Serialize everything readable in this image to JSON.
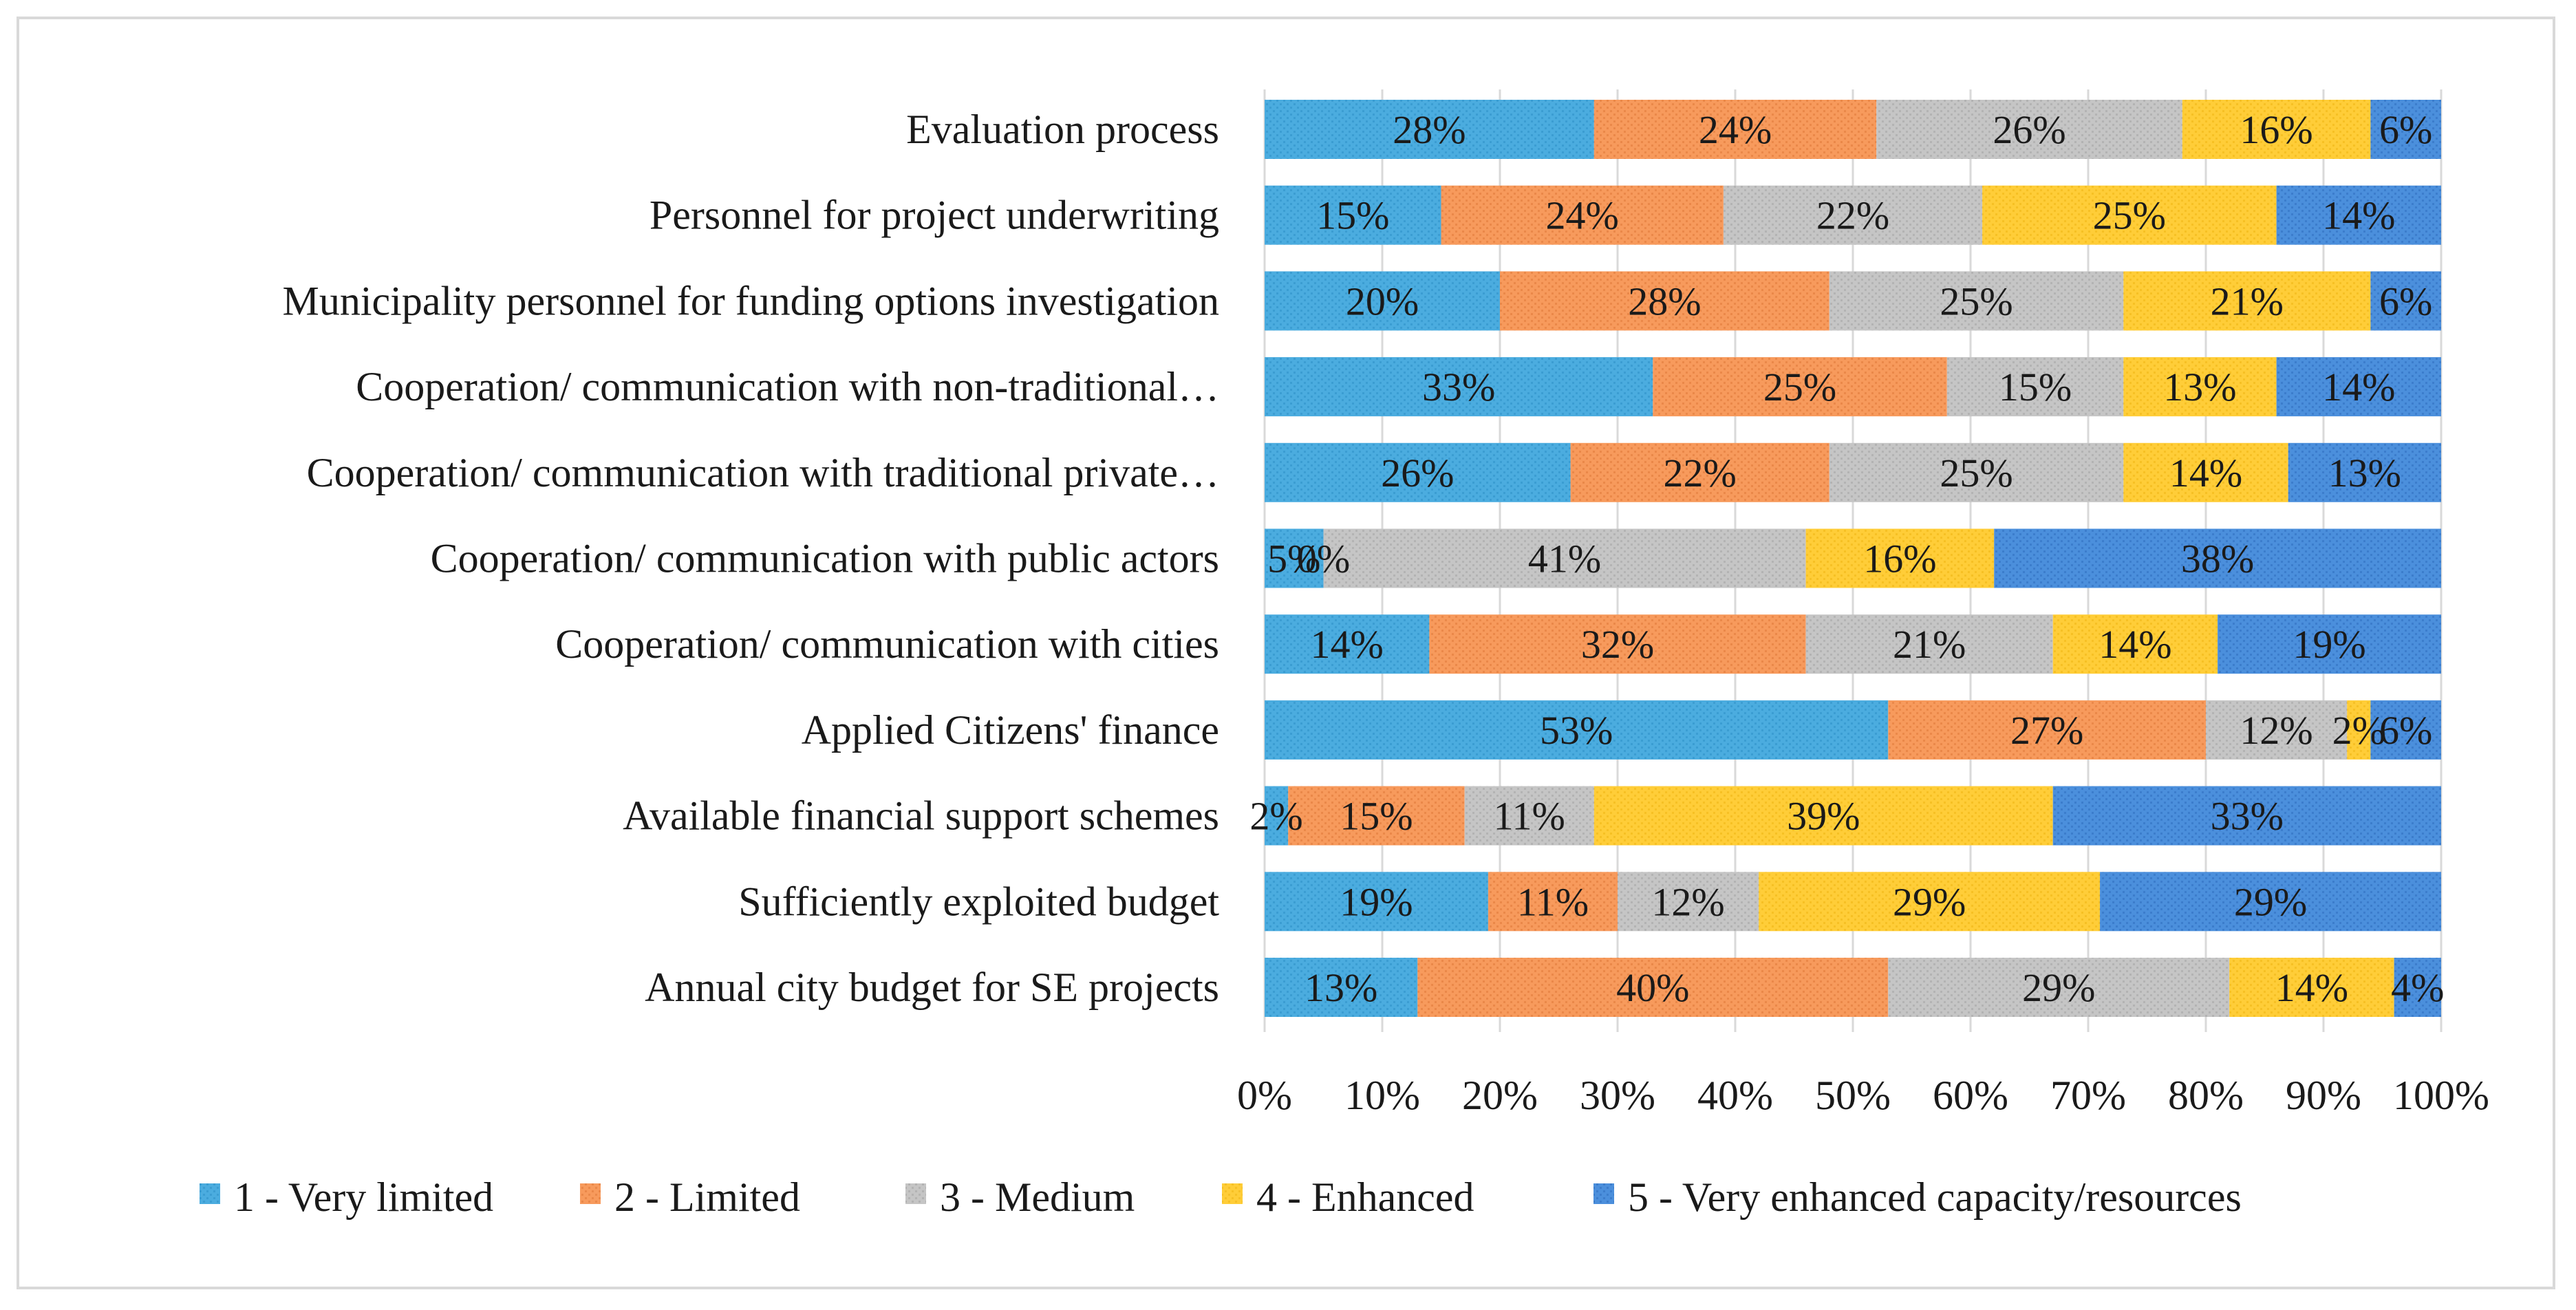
{
  "chart_data": {
    "type": "bar",
    "orientation": "horizontal",
    "stacked": "percent",
    "title": "",
    "xlabel": "",
    "ylabel": "",
    "xlim": [
      0,
      100
    ],
    "x_ticks": [
      "0%",
      "10%",
      "20%",
      "30%",
      "40%",
      "50%",
      "60%",
      "70%",
      "80%",
      "90%",
      "100%"
    ],
    "grid": true,
    "legend_position": "bottom",
    "categories": [
      "Evaluation process",
      "Personnel for project underwriting",
      "Municipality personnel for funding options investigation",
      "Cooperation/ communication with non-traditional…",
      "Cooperation/ communication with traditional private…",
      "Cooperation/ communication with public actors",
      "Cooperation/ communication with cities",
      "Applied Citizens' finance",
      "Available financial support schemes",
      "Sufficiently exploited budget",
      "Annual city budget for SE projects"
    ],
    "series": [
      {
        "name": "1 - Very limited",
        "color": "#4bacdf",
        "hatch": "#2e8fc6",
        "values": [
          28,
          15,
          20,
          33,
          26,
          5,
          14,
          53,
          2,
          19,
          13
        ],
        "labels": [
          "28%",
          "15%",
          "20%",
          "33%",
          "26%",
          "5%",
          "14%",
          "53%",
          "2%",
          "19%",
          "13%"
        ]
      },
      {
        "name": "2 - Limited",
        "color": "#f79a5c",
        "hatch": "#e07a3a",
        "values": [
          24,
          24,
          28,
          25,
          22,
          0,
          32,
          27,
          15,
          11,
          40
        ],
        "labels": [
          "24%",
          "24%",
          "28%",
          "25%",
          "22%",
          "0%",
          "32%",
          "27%",
          "15%",
          "11%",
          "40%"
        ]
      },
      {
        "name": "3 - Medium",
        "color": "#c5c5c5",
        "hatch": "#a3a3a3",
        "values": [
          26,
          22,
          25,
          15,
          25,
          41,
          21,
          12,
          11,
          12,
          29
        ],
        "labels": [
          "26%",
          "22%",
          "25%",
          "15%",
          "25%",
          "41%",
          "21%",
          "12%",
          "11%",
          "12%",
          "29%"
        ]
      },
      {
        "name": "4 - Enhanced",
        "color": "#ffcd38",
        "hatch": "#efb514",
        "values": [
          16,
          25,
          21,
          13,
          14,
          16,
          14,
          2,
          39,
          29,
          14
        ],
        "labels": [
          "16%",
          "25%",
          "21%",
          "13%",
          "14%",
          "16%",
          "14%",
          "2%",
          "39%",
          "29%",
          "14%"
        ]
      },
      {
        "name": "5 - Very enhanced capacity/resources",
        "color": "#4b8fdc",
        "hatch": "#2f6fbe",
        "values": [
          6,
          14,
          6,
          14,
          13,
          38,
          19,
          6,
          33,
          29,
          4
        ],
        "labels": [
          "6%",
          "14%",
          "6%",
          "14%",
          "13%",
          "38%",
          "19%",
          "6%",
          "33%",
          "29%",
          "4%"
        ]
      }
    ]
  }
}
